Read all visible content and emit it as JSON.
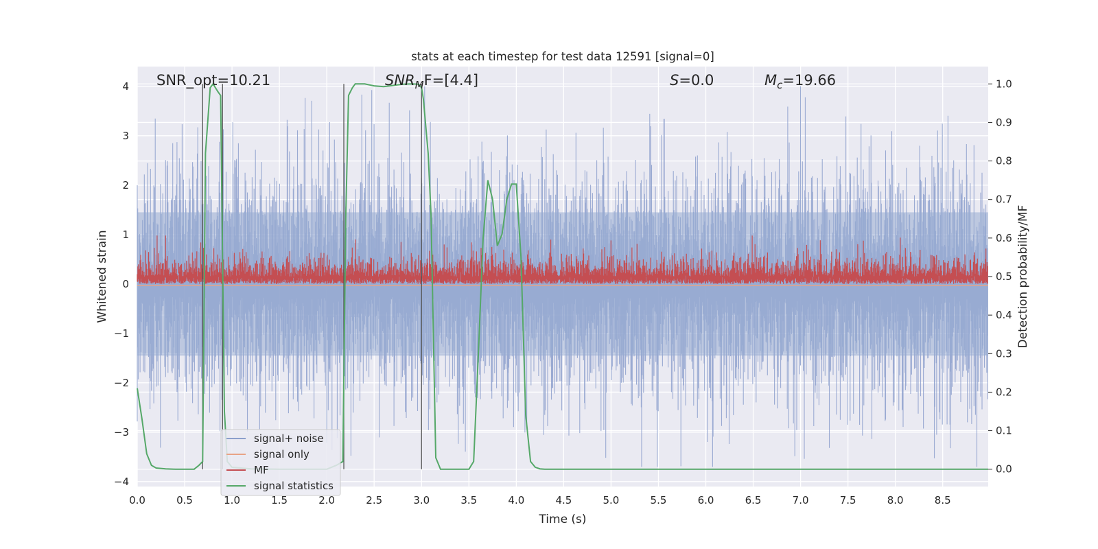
{
  "chart_data": {
    "type": "line",
    "title": "stats at each timestep for test data 12591 [signal=0]",
    "xlabel": "Time (s)",
    "ylabel_left": "Whitened strain",
    "ylabel_right": "Detection probability/MF",
    "xlim": [
      0.0,
      8.98
    ],
    "ylim_left": [
      -4.1,
      4.4
    ],
    "ylim_right": [
      -0.045,
      1.045
    ],
    "xticks": [
      "0.0",
      "0.5",
      "1.0",
      "1.5",
      "2.0",
      "2.5",
      "3.0",
      "3.5",
      "4.0",
      "4.5",
      "5.0",
      "5.5",
      "6.0",
      "6.5",
      "7.0",
      "7.5",
      "8.0",
      "8.5"
    ],
    "yticks_left": [
      "−4",
      "−3",
      "−2",
      "−1",
      "0",
      "1",
      "2",
      "3",
      "4"
    ],
    "yticks_right": [
      "0.0",
      "0.1",
      "0.2",
      "0.3",
      "0.4",
      "0.5",
      "0.6",
      "0.7",
      "0.8",
      "0.9",
      "1.0"
    ],
    "grid": true,
    "legend": {
      "position": "lower-left",
      "entries": [
        {
          "label": "signal+ noise",
          "color": "#8c9fcc"
        },
        {
          "label": "signal only",
          "color": "#e8a386"
        },
        {
          "label": "MF",
          "color": "#c44e52"
        },
        {
          "label": "signal statistics",
          "color": "#55a868"
        }
      ]
    },
    "annotations": {
      "snr_opt": "SNR_opt=10.21",
      "snr_mf_base": "SNR",
      "snr_mf_sub": "M",
      "snr_mf_rest": "F=[4.4]",
      "s_sym": "S",
      "s_rest": "=0.0",
      "mc_sym": "M",
      "mc_sub": "c",
      "mc_rest": "=19.66"
    },
    "vertical_lines_x": [
      0.69,
      0.9,
      2.18,
      3.0
    ],
    "series": [
      {
        "name": "signal statistics",
        "axis": "right",
        "color": "#55a868",
        "x": [
          0.0,
          0.05,
          0.1,
          0.15,
          0.2,
          0.3,
          0.4,
          0.5,
          0.6,
          0.65,
          0.69,
          0.72,
          0.77,
          0.8,
          0.85,
          0.88,
          0.92,
          0.95,
          1.0,
          1.2,
          1.5,
          1.8,
          2.0,
          2.1,
          2.17,
          2.2,
          2.23,
          2.27,
          2.3,
          2.4,
          2.5,
          2.6,
          2.7,
          2.8,
          2.9,
          2.97,
          3.0,
          3.02,
          3.07,
          3.1,
          3.15,
          3.2,
          3.3,
          3.4,
          3.5,
          3.55,
          3.6,
          3.65,
          3.7,
          3.75,
          3.8,
          3.85,
          3.9,
          3.95,
          4.0,
          4.05,
          4.1,
          4.15,
          4.2,
          4.25,
          4.3,
          4.4,
          4.5,
          5.0,
          5.5,
          6.0,
          6.5,
          7.0,
          7.5,
          8.0,
          8.5,
          8.98
        ],
        "y": [
          0.21,
          0.13,
          0.04,
          0.01,
          0.003,
          0.001,
          0.0,
          0.0,
          0.0,
          0.01,
          0.02,
          0.82,
          0.99,
          1.0,
          0.98,
          0.97,
          0.15,
          0.02,
          0.005,
          0.001,
          0.0,
          0.0,
          0.0,
          0.01,
          0.02,
          0.65,
          0.97,
          0.99,
          1.0,
          1.0,
          0.995,
          0.993,
          0.996,
          0.999,
          1.0,
          0.999,
          0.99,
          0.96,
          0.82,
          0.66,
          0.03,
          0.0,
          0.0,
          0.0,
          0.0,
          0.02,
          0.3,
          0.6,
          0.75,
          0.7,
          0.58,
          0.61,
          0.7,
          0.74,
          0.74,
          0.55,
          0.14,
          0.02,
          0.005,
          0.001,
          0.0,
          0.0,
          0.0,
          0.0,
          0.0,
          0.0,
          0.0,
          0.0,
          0.0,
          0.0,
          0.0,
          0.0
        ]
      },
      {
        "name": "MF",
        "axis": "left",
        "color": "#c44e52",
        "description_baseline": 0.0,
        "typical_range": [
          0.0,
          0.8
        ]
      },
      {
        "name": "signal+ noise",
        "axis": "left",
        "color": "#8c9fcc",
        "typical_range": [
          -3.7,
          4.0
        ]
      },
      {
        "name": "signal only",
        "axis": "left",
        "color": "#e8a386",
        "value": 0.0
      }
    ]
  }
}
